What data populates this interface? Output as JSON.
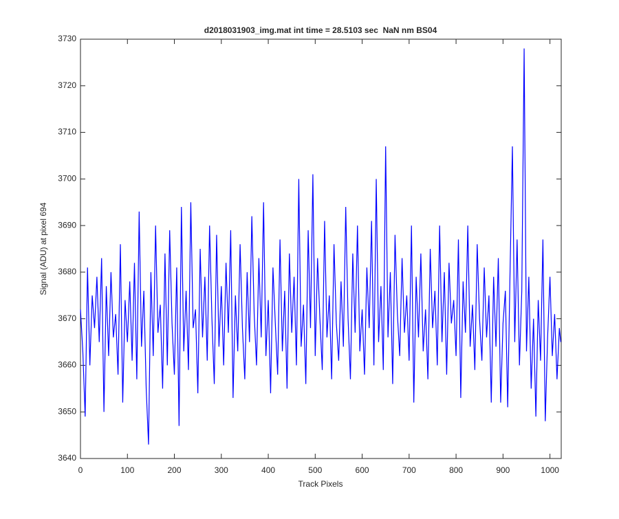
{
  "chart_data": {
    "type": "line",
    "title": "d2018031903_img.mat int time = 28.5103 sec  NaN nm BS04",
    "x_label": "Track Pixels",
    "y_label": "Signal (ADU) at pixel 694",
    "color": "#0000ff",
    "xlim": [
      0,
      1024
    ],
    "ylim": [
      3640,
      3730
    ],
    "xticks": [
      0,
      100,
      200,
      300,
      400,
      500,
      600,
      700,
      800,
      900,
      1000
    ],
    "yticks": [
      3640,
      3650,
      3660,
      3670,
      3680,
      3690,
      3700,
      3710,
      3720,
      3730
    ],
    "x": [
      0,
      5,
      10,
      15,
      20,
      25,
      30,
      35,
      40,
      45,
      50,
      55,
      60,
      65,
      70,
      75,
      80,
      85,
      90,
      95,
      100,
      105,
      110,
      115,
      120,
      125,
      130,
      135,
      140,
      145,
      150,
      155,
      160,
      165,
      170,
      175,
      180,
      185,
      190,
      195,
      200,
      205,
      210,
      215,
      220,
      225,
      230,
      235,
      240,
      245,
      250,
      255,
      260,
      265,
      270,
      275,
      280,
      285,
      290,
      295,
      300,
      305,
      310,
      315,
      320,
      325,
      330,
      335,
      340,
      345,
      350,
      355,
      360,
      365,
      370,
      375,
      380,
      385,
      390,
      395,
      400,
      405,
      410,
      415,
      420,
      425,
      430,
      435,
      440,
      445,
      450,
      455,
      460,
      465,
      470,
      475,
      480,
      485,
      490,
      495,
      500,
      505,
      510,
      515,
      520,
      525,
      530,
      535,
      540,
      545,
      550,
      555,
      560,
      565,
      570,
      575,
      580,
      585,
      590,
      595,
      600,
      605,
      610,
      615,
      620,
      625,
      630,
      635,
      640,
      645,
      650,
      655,
      660,
      665,
      670,
      675,
      680,
      685,
      690,
      695,
      700,
      705,
      710,
      715,
      720,
      725,
      730,
      735,
      740,
      745,
      750,
      755,
      760,
      765,
      770,
      775,
      780,
      785,
      790,
      795,
      800,
      805,
      810,
      815,
      820,
      825,
      830,
      835,
      840,
      845,
      850,
      855,
      860,
      865,
      870,
      875,
      880,
      885,
      890,
      895,
      900,
      905,
      910,
      915,
      920,
      925,
      930,
      935,
      940,
      945,
      950,
      955,
      960,
      965,
      970,
      975,
      980,
      985,
      990,
      995,
      1000,
      1005,
      1010,
      1015,
      1020,
      1023
    ],
    "values": [
      3672,
      3663,
      3649,
      3681,
      3660,
      3675,
      3668,
      3679,
      3665,
      3683,
      3650,
      3677,
      3662,
      3680,
      3666,
      3671,
      3658,
      3686,
      3652,
      3674,
      3665,
      3678,
      3661,
      3682,
      3657,
      3693,
      3664,
      3676,
      3655,
      3643,
      3680,
      3662,
      3690,
      3667,
      3673,
      3655,
      3684,
      3660,
      3689,
      3669,
      3658,
      3681,
      3647,
      3694,
      3663,
      3676,
      3659,
      3695,
      3668,
      3672,
      3654,
      3685,
      3666,
      3679,
      3661,
      3690,
      3670,
      3656,
      3688,
      3664,
      3677,
      3660,
      3682,
      3667,
      3689,
      3653,
      3675,
      3663,
      3686,
      3668,
      3657,
      3680,
      3665,
      3692,
      3671,
      3660,
      3683,
      3666,
      3695,
      3662,
      3674,
      3654,
      3681,
      3669,
      3658,
      3687,
      3663,
      3676,
      3655,
      3684,
      3667,
      3679,
      3660,
      3700,
      3664,
      3673,
      3656,
      3689,
      3668,
      3701,
      3662,
      3683,
      3670,
      3659,
      3691,
      3666,
      3675,
      3657,
      3686,
      3669,
      3661,
      3678,
      3664,
      3694,
      3670,
      3657,
      3684,
      3667,
      3690,
      3663,
      3672,
      3658,
      3681,
      3668,
      3691,
      3660,
      3700,
      3665,
      3677,
      3659,
      3707,
      3666,
      3680,
      3656,
      3688,
      3671,
      3662,
      3683,
      3667,
      3675,
      3661,
      3690,
      3652,
      3679,
      3666,
      3684,
      3663,
      3672,
      3657,
      3685,
      3668,
      3676,
      3660,
      3690,
      3665,
      3680,
      3658,
      3682,
      3669,
      3674,
      3662,
      3687,
      3653,
      3678,
      3667,
      3690,
      3664,
      3673,
      3659,
      3686,
      3670,
      3661,
      3681,
      3666,
      3675,
      3652,
      3679,
      3664,
      3683,
      3652,
      3669,
      3676,
      3651,
      3680,
      3707,
      3665,
      3687,
      3660,
      3676,
      3728,
      3663,
      3679,
      3655,
      3670,
      3649,
      3674,
      3661,
      3687,
      3648,
      3666,
      3679,
      3662,
      3671,
      3657,
      3668,
      3665
    ]
  }
}
